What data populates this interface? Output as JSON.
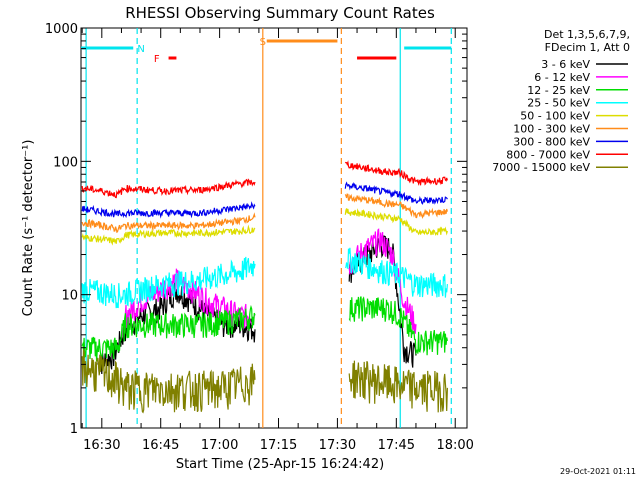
{
  "chart_data": {
    "type": "line",
    "title": "RHESSI Observing Summary Count Rates",
    "xlabel": "Start Time (25-Apr-15 16:24:42)",
    "ylabel": "Count Rate (s⁻¹ detector⁻¹)",
    "y_scale": "log",
    "ylim": [
      1,
      1000
    ],
    "xlim": [
      "16:24:42",
      "18:03:00"
    ],
    "x_ticks": [
      "16:30",
      "16:45",
      "17:00",
      "17:15",
      "17:30",
      "17:45",
      "18:00"
    ],
    "y_ticks": [
      "1",
      "10",
      "100",
      "1000"
    ],
    "grid": false,
    "legend_position": "top-right",
    "legend_header": [
      "Det 1,3,5,6,7,9,",
      "FDecim 1, Att 0"
    ],
    "timestamp": "29-Oct-2021 01:11",
    "gap": [
      "17:10",
      "17:30"
    ],
    "vlines": [
      {
        "x": "16:26",
        "color": "#00e5ee",
        "style": "solid"
      },
      {
        "x": "16:39",
        "color": "#00e5ee",
        "style": "dashed"
      },
      {
        "x": "17:11",
        "color": "#ff8c1a",
        "style": "solid"
      },
      {
        "x": "17:31",
        "color": "#ff8c1a",
        "style": "dashed"
      },
      {
        "x": "17:46",
        "color": "#00e5ee",
        "style": "solid"
      },
      {
        "x": "17:59",
        "color": "#00e5ee",
        "style": "dashed"
      }
    ],
    "flag_bars": [
      {
        "label": "N",
        "color": "#00e5ee",
        "label_x": "16:40",
        "segments": [
          [
            "16:24:42",
            "16:38"
          ],
          [
            "17:47",
            "17:59"
          ]
        ]
      },
      {
        "label": "F",
        "color": "#ff0000",
        "label_x": "16:44",
        "segments": [
          [
            "16:47",
            "16:49"
          ],
          [
            "17:35",
            "17:45"
          ]
        ]
      },
      {
        "label": "S",
        "color": "#ff8c1a",
        "label_x": "17:11",
        "segments": [
          [
            "17:12",
            "17:30"
          ]
        ]
      }
    ],
    "series": [
      {
        "name": "3 - 6 keV",
        "color": "#000000",
        "points": [
          [
            "16:29",
            3
          ],
          [
            "16:33",
            3.5
          ],
          [
            "16:36",
            5.5
          ],
          [
            "16:40",
            7
          ],
          [
            "16:45",
            8
          ],
          [
            "16:49",
            11
          ],
          [
            "16:53",
            9
          ],
          [
            "16:57",
            7
          ],
          [
            "17:01",
            6
          ],
          [
            "17:05",
            6
          ],
          [
            "17:09",
            5.5
          ],
          [
            "17:33",
            15
          ],
          [
            "17:37",
            19
          ],
          [
            "17:41",
            24
          ],
          [
            "17:44",
            22
          ],
          [
            "17:47",
            4
          ],
          [
            "17:50",
            3.5
          ]
        ]
      },
      {
        "name": "6 - 12 keV",
        "color": "#ff00ff",
        "points": [
          [
            "16:36",
            7
          ],
          [
            "16:40",
            9
          ],
          [
            "16:45",
            11
          ],
          [
            "16:49",
            13
          ],
          [
            "16:53",
            11
          ],
          [
            "16:57",
            9
          ],
          [
            "17:01",
            8
          ],
          [
            "17:05",
            7
          ],
          [
            "17:09",
            7
          ],
          [
            "17:33",
            17
          ],
          [
            "17:37",
            22
          ],
          [
            "17:41",
            26
          ],
          [
            "17:44",
            20
          ],
          [
            "17:47",
            9
          ],
          [
            "17:50",
            6
          ]
        ]
      },
      {
        "name": "12 - 25 keV",
        "color": "#00dd00",
        "points": [
          [
            "16:25",
            4
          ],
          [
            "16:30",
            4
          ],
          [
            "16:34",
            4
          ],
          [
            "16:36",
            6
          ],
          [
            "16:45",
            6
          ],
          [
            "16:55",
            6
          ],
          [
            "17:05",
            6.5
          ],
          [
            "17:09",
            7
          ],
          [
            "17:33",
            8
          ],
          [
            "17:38",
            8
          ],
          [
            "17:43",
            8
          ],
          [
            "17:46",
            7
          ],
          [
            "17:50",
            4.5
          ],
          [
            "17:58",
            4.5
          ]
        ]
      },
      {
        "name": "25 - 50 keV",
        "color": "#00ffff",
        "points": [
          [
            "16:25",
            11
          ],
          [
            "16:30",
            10.5
          ],
          [
            "16:35",
            10
          ],
          [
            "16:40",
            11
          ],
          [
            "16:45",
            12
          ],
          [
            "16:50",
            12.5
          ],
          [
            "16:55",
            13
          ],
          [
            "17:00",
            14
          ],
          [
            "17:05",
            15
          ],
          [
            "17:09",
            17
          ],
          [
            "17:32",
            19
          ],
          [
            "17:37",
            17
          ],
          [
            "17:42",
            15
          ],
          [
            "17:46",
            14
          ],
          [
            "17:50",
            12
          ],
          [
            "17:58",
            12
          ]
        ]
      },
      {
        "name": "50 - 100 keV",
        "color": "#dddd00",
        "points": [
          [
            "16:25",
            27
          ],
          [
            "16:30",
            26
          ],
          [
            "16:34",
            25
          ],
          [
            "16:36",
            28
          ],
          [
            "16:45",
            29
          ],
          [
            "16:55",
            29
          ],
          [
            "17:05",
            30
          ],
          [
            "17:09",
            31
          ],
          [
            "17:32",
            42
          ],
          [
            "17:38",
            40
          ],
          [
            "17:43",
            38
          ],
          [
            "17:46",
            37
          ],
          [
            "17:50",
            29
          ],
          [
            "17:58",
            30
          ]
        ]
      },
      {
        "name": "100 - 300 keV",
        "color": "#ff8c1a",
        "points": [
          [
            "16:25",
            35
          ],
          [
            "16:30",
            33
          ],
          [
            "16:34",
            31
          ],
          [
            "16:36",
            33
          ],
          [
            "16:45",
            33
          ],
          [
            "16:55",
            33
          ],
          [
            "17:05",
            36
          ],
          [
            "17:09",
            38
          ],
          [
            "17:32",
            54
          ],
          [
            "17:38",
            51
          ],
          [
            "17:43",
            48
          ],
          [
            "17:46",
            47
          ],
          [
            "17:50",
            40
          ],
          [
            "17:58",
            42
          ]
        ]
      },
      {
        "name": "300 - 800 keV",
        "color": "#0000ee",
        "points": [
          [
            "16:25",
            44
          ],
          [
            "16:30",
            42
          ],
          [
            "16:34",
            40
          ],
          [
            "16:36",
            41
          ],
          [
            "16:45",
            41
          ],
          [
            "16:55",
            41
          ],
          [
            "17:05",
            45
          ],
          [
            "17:09",
            46
          ],
          [
            "17:32",
            66
          ],
          [
            "17:38",
            62
          ],
          [
            "17:43",
            58
          ],
          [
            "17:46",
            57
          ],
          [
            "17:50",
            50
          ],
          [
            "17:58",
            52
          ]
        ]
      },
      {
        "name": "800 - 7000 keV",
        "color": "#ff0000",
        "points": [
          [
            "16:25",
            63
          ],
          [
            "16:30",
            60
          ],
          [
            "16:34",
            56
          ],
          [
            "16:36",
            63
          ],
          [
            "16:45",
            60
          ],
          [
            "16:55",
            61
          ],
          [
            "17:05",
            68
          ],
          [
            "17:09",
            70
          ],
          [
            "17:32",
            95
          ],
          [
            "17:38",
            88
          ],
          [
            "17:43",
            83
          ],
          [
            "17:46",
            82
          ],
          [
            "17:50",
            70
          ],
          [
            "17:58",
            72
          ]
        ]
      },
      {
        "name": "7000 - 15000 keV",
        "color": "#808000",
        "points": [
          [
            "16:25",
            3
          ],
          [
            "16:30",
            2.6
          ],
          [
            "16:34",
            2.3
          ],
          [
            "16:36",
            2
          ],
          [
            "16:50",
            2
          ],
          [
            "17:00",
            2
          ],
          [
            "17:09",
            2.3
          ],
          [
            "17:33",
            2.5
          ],
          [
            "17:43",
            2.2
          ],
          [
            "17:50",
            2
          ],
          [
            "17:58",
            2
          ]
        ]
      }
    ]
  }
}
